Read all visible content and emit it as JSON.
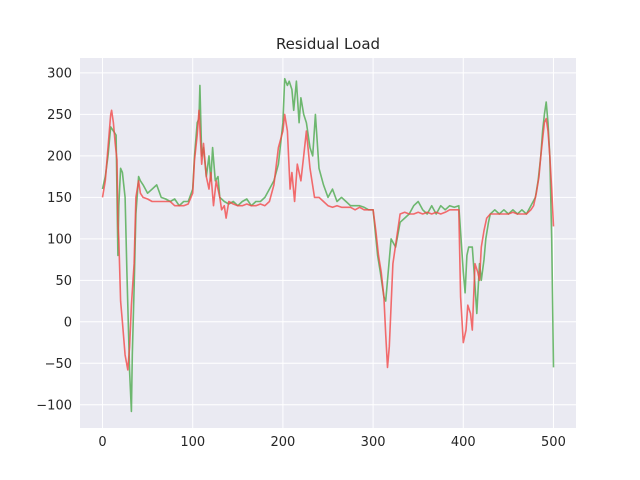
{
  "chart_data": {
    "type": "line",
    "title": "Residual Load",
    "xlabel": "",
    "ylabel": "",
    "xlim": [
      -25,
      525
    ],
    "ylim": [
      -128,
      318
    ],
    "xticks": [
      0,
      100,
      200,
      300,
      400,
      500
    ],
    "yticks": [
      -100,
      -50,
      0,
      50,
      100,
      150,
      200,
      250,
      300
    ],
    "grid": true,
    "legend": "none",
    "series": [
      {
        "color": "#4daa4d",
        "opacity": 0.8,
        "x": [
          0,
          3,
          6,
          9,
          12,
          15,
          17,
          18,
          20,
          22,
          25,
          27,
          30,
          32,
          33,
          35,
          37,
          40,
          42,
          45,
          50,
          55,
          60,
          65,
          70,
          75,
          80,
          85,
          90,
          95,
          100,
          102,
          105,
          107,
          108,
          110,
          112,
          115,
          118,
          120,
          122,
          125,
          128,
          130,
          135,
          140,
          145,
          150,
          155,
          160,
          165,
          170,
          175,
          180,
          185,
          190,
          195,
          200,
          202,
          205,
          207,
          210,
          212,
          215,
          218,
          220,
          223,
          226,
          230,
          233,
          236,
          240,
          245,
          250,
          255,
          260,
          265,
          270,
          275,
          280,
          285,
          290,
          295,
          300,
          305,
          308,
          312,
          314,
          316,
          320,
          325,
          330,
          335,
          340,
          345,
          350,
          355,
          360,
          365,
          370,
          375,
          380,
          385,
          390,
          395,
          400,
          402,
          404,
          406,
          410,
          412,
          415,
          418,
          420,
          423,
          425,
          428,
          430,
          435,
          440,
          445,
          450,
          455,
          460,
          465,
          470,
          475,
          480,
          483,
          486,
          488,
          490,
          492,
          494,
          496,
          498,
          500
        ],
        "y": [
          160,
          175,
          200,
          235,
          230,
          225,
          80,
          140,
          185,
          180,
          150,
          60,
          -60,
          -108,
          -40,
          40,
          130,
          175,
          170,
          165,
          155,
          160,
          165,
          150,
          148,
          145,
          148,
          140,
          145,
          145,
          160,
          200,
          240,
          245,
          285,
          200,
          210,
          175,
          200,
          170,
          210,
          170,
          175,
          150,
          145,
          142,
          145,
          140,
          145,
          148,
          140,
          145,
          145,
          150,
          160,
          170,
          190,
          240,
          293,
          285,
          290,
          280,
          255,
          290,
          240,
          270,
          250,
          240,
          210,
          200,
          250,
          185,
          165,
          150,
          160,
          145,
          150,
          145,
          140,
          140,
          140,
          138,
          135,
          135,
          80,
          60,
          30,
          25,
          50,
          100,
          90,
          120,
          125,
          130,
          140,
          145,
          135,
          130,
          140,
          130,
          140,
          135,
          140,
          138,
          140,
          60,
          35,
          80,
          90,
          90,
          60,
          10,
          70,
          50,
          75,
          100,
          120,
          130,
          135,
          130,
          135,
          130,
          135,
          130,
          135,
          130,
          140,
          150,
          170,
          200,
          230,
          250,
          265,
          240,
          200,
          100,
          -55
        ]
      },
      {
        "color": "#f24a4a",
        "opacity": 0.8,
        "x": [
          0,
          3,
          6,
          9,
          10,
          12,
          14,
          16,
          17,
          18,
          20,
          22,
          25,
          28,
          30,
          32,
          35,
          37,
          40,
          42,
          45,
          50,
          55,
          60,
          65,
          70,
          75,
          80,
          85,
          90,
          95,
          100,
          102,
          105,
          107,
          110,
          112,
          115,
          118,
          120,
          123,
          126,
          130,
          132,
          135,
          137,
          140,
          145,
          150,
          155,
          160,
          165,
          170,
          175,
          180,
          185,
          190,
          195,
          200,
          202,
          205,
          208,
          210,
          213,
          216,
          220,
          223,
          226,
          230,
          235,
          240,
          245,
          250,
          255,
          260,
          265,
          270,
          275,
          280,
          285,
          290,
          295,
          300,
          303,
          306,
          309,
          312,
          314,
          316,
          318,
          322,
          326,
          330,
          335,
          340,
          345,
          350,
          355,
          360,
          365,
          370,
          375,
          380,
          385,
          390,
          395,
          397,
          400,
          403,
          405,
          408,
          410,
          413,
          416,
          418,
          420,
          423,
          426,
          430,
          435,
          440,
          445,
          450,
          455,
          460,
          465,
          470,
          475,
          478,
          481,
          484,
          486,
          488,
          490,
          492,
          494,
          496,
          498,
          500
        ],
        "y": [
          150,
          170,
          210,
          250,
          255,
          240,
          215,
          195,
          120,
          100,
          25,
          0,
          -40,
          -58,
          -30,
          20,
          70,
          150,
          170,
          155,
          150,
          148,
          145,
          145,
          145,
          145,
          145,
          140,
          140,
          140,
          142,
          155,
          195,
          225,
          255,
          190,
          215,
          175,
          160,
          180,
          140,
          170,
          150,
          135,
          140,
          125,
          145,
          142,
          140,
          140,
          142,
          140,
          140,
          142,
          140,
          145,
          165,
          210,
          230,
          250,
          230,
          160,
          180,
          145,
          190,
          170,
          200,
          230,
          185,
          150,
          150,
          145,
          140,
          138,
          140,
          138,
          138,
          138,
          135,
          138,
          135,
          135,
          135,
          110,
          80,
          60,
          30,
          -15,
          -55,
          -30,
          70,
          100,
          130,
          132,
          130,
          130,
          132,
          130,
          132,
          130,
          132,
          130,
          132,
          135,
          135,
          135,
          30,
          -25,
          -10,
          20,
          10,
          -10,
          70,
          60,
          50,
          90,
          110,
          125,
          130,
          130,
          130,
          130,
          130,
          132,
          130,
          130,
          130,
          135,
          140,
          155,
          175,
          200,
          220,
          240,
          245,
          230,
          200,
          160,
          115
        ]
      }
    ]
  }
}
